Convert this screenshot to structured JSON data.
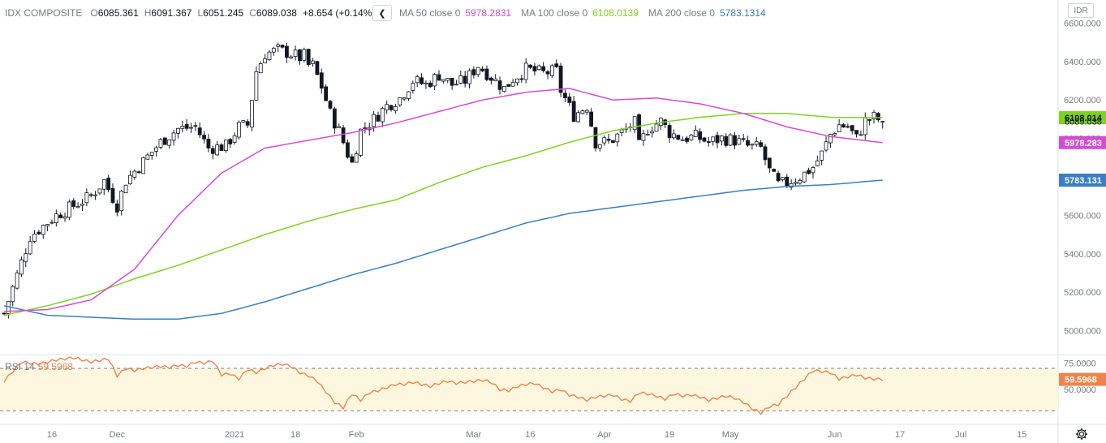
{
  "legend": {
    "symbol": "IDX COMPOSITE",
    "o_label": "O",
    "o_value": "6085.361",
    "h_label": "H",
    "h_value": "6091.367",
    "l_label": "L",
    "l_value": "6051.245",
    "c_label": "C",
    "c_value": "6089.038",
    "change": "+8.654 (+0.14%)"
  },
  "ma_legend": {
    "collapse_icon": "chevron-left-icon",
    "items": [
      {
        "name": "MA 50 close 0",
        "value": "5978.2831",
        "color": "#d64bd6"
      },
      {
        "name": "MA 100 close 0",
        "value": "6108.0139",
        "color": "#7ed321"
      },
      {
        "name": "MA 200 close 0",
        "value": "5783.1314",
        "color": "#3a7fc1"
      }
    ]
  },
  "currency": "IDR",
  "rsi_legend": {
    "name": "RSI 14",
    "value": "59.5968"
  },
  "settings_icon": "gear-icon",
  "colors": {
    "candle": "#131722",
    "ma50": "#d64bd6",
    "ma100": "#7ed321",
    "ma200": "#3a7fc1",
    "rsi": "#f0834a",
    "rsi_band": "#fdf7e0",
    "axis_text": "#787b86",
    "border": "#e0e3eb"
  },
  "chart_data": [
    {
      "type": "candlestick",
      "title": "IDX COMPOSITE",
      "ylim": [
        4880,
        6720
      ],
      "y_ticks": [
        "6600.000",
        "6400.000",
        "6200.000",
        "6000.000",
        "5800.000",
        "5600.000",
        "5400.000",
        "5200.000",
        "5000.000"
      ],
      "y_tick_values": [
        6600,
        6400,
        6200,
        6000,
        5800,
        5600,
        5400,
        5200,
        5000
      ],
      "x_ticks": [
        {
          "label": "16",
          "index": 11
        },
        {
          "label": "Dec",
          "index": 26
        },
        {
          "label": "2021",
          "index": 53
        },
        {
          "label": "18",
          "index": 67
        },
        {
          "label": "Feb",
          "index": 81
        },
        {
          "label": "Mar",
          "index": 108
        },
        {
          "label": "16",
          "index": 121
        },
        {
          "label": "Apr",
          "index": 138
        },
        {
          "label": "19",
          "index": 153
        },
        {
          "label": "May",
          "index": 167
        },
        {
          "label": "Jun",
          "index": 191
        },
        {
          "label": "17",
          "index": 206
        },
        {
          "label": "Jul",
          "index": 220
        },
        {
          "label": "15",
          "index": 234
        }
      ],
      "ohlc_anchors": [
        [
          0,
          5090
        ],
        [
          6,
          5490
        ],
        [
          12,
          5600
        ],
        [
          20,
          5700
        ],
        [
          23,
          5780
        ],
        [
          26,
          5650
        ],
        [
          28,
          5780
        ],
        [
          32,
          5880
        ],
        [
          36,
          5980
        ],
        [
          40,
          6050
        ],
        [
          44,
          6060
        ],
        [
          47,
          5950
        ],
        [
          51,
          5960
        ],
        [
          54,
          6060
        ],
        [
          56,
          6070
        ],
        [
          58,
          6350
        ],
        [
          60,
          6440
        ],
        [
          63,
          6460
        ],
        [
          66,
          6440
        ],
        [
          68,
          6420
        ],
        [
          69,
          6430
        ],
        [
          70,
          6380
        ],
        [
          71,
          6380
        ],
        [
          73,
          6270
        ],
        [
          75,
          6130
        ],
        [
          77,
          6040
        ],
        [
          79,
          5920
        ],
        [
          80,
          5870
        ],
        [
          82,
          6040
        ],
        [
          85,
          6100
        ],
        [
          88,
          6170
        ],
        [
          91,
          6210
        ],
        [
          94,
          6300
        ],
        [
          97,
          6280
        ],
        [
          100,
          6330
        ],
        [
          103,
          6280
        ],
        [
          106,
          6300
        ],
        [
          109,
          6380
        ],
        [
          112,
          6320
        ],
        [
          115,
          6260
        ],
        [
          117,
          6310
        ],
        [
          120,
          6360
        ],
        [
          124,
          6340
        ],
        [
          127,
          6350
        ],
        [
          128,
          6250
        ],
        [
          131,
          6120
        ],
        [
          134,
          6170
        ],
        [
          136,
          5980
        ],
        [
          139,
          5980
        ],
        [
          142,
          6030
        ],
        [
          145,
          6080
        ],
        [
          146,
          5960
        ],
        [
          148,
          6050
        ],
        [
          151,
          6090
        ],
        [
          153,
          6030
        ],
        [
          156,
          6000
        ],
        [
          159,
          6010
        ],
        [
          162,
          5980
        ],
        [
          165,
          6000
        ],
        [
          168,
          5990
        ],
        [
          171,
          5960
        ],
        [
          174,
          5950
        ],
        [
          176,
          5830
        ],
        [
          178,
          5760
        ],
        [
          180,
          5770
        ],
        [
          183,
          5800
        ],
        [
          186,
          5850
        ],
        [
          188,
          5920
        ],
        [
          190,
          6020
        ],
        [
          192,
          6070
        ],
        [
          194,
          6060
        ],
        [
          196,
          6000
        ],
        [
          198,
          6090
        ],
        [
          200,
          6110
        ],
        [
          202,
          6089
        ]
      ],
      "ma50": [
        [
          0,
          5100
        ],
        [
          10,
          5110
        ],
        [
          20,
          5160
        ],
        [
          30,
          5320
        ],
        [
          40,
          5600
        ],
        [
          50,
          5820
        ],
        [
          60,
          5950
        ],
        [
          70,
          5990
        ],
        [
          80,
          6030
        ],
        [
          90,
          6080
        ],
        [
          100,
          6140
        ],
        [
          110,
          6200
        ],
        [
          120,
          6240
        ],
        [
          130,
          6260
        ],
        [
          140,
          6200
        ],
        [
          150,
          6210
        ],
        [
          160,
          6180
        ],
        [
          170,
          6130
        ],
        [
          180,
          6060
        ],
        [
          190,
          6010
        ],
        [
          202,
          5978
        ]
      ],
      "ma100": [
        [
          0,
          5080
        ],
        [
          10,
          5130
        ],
        [
          20,
          5190
        ],
        [
          30,
          5270
        ],
        [
          40,
          5340
        ],
        [
          50,
          5420
        ],
        [
          60,
          5500
        ],
        [
          70,
          5570
        ],
        [
          80,
          5630
        ],
        [
          90,
          5680
        ],
        [
          100,
          5770
        ],
        [
          110,
          5850
        ],
        [
          120,
          5910
        ],
        [
          130,
          5980
        ],
        [
          140,
          6040
        ],
        [
          150,
          6080
        ],
        [
          160,
          6110
        ],
        [
          170,
          6130
        ],
        [
          180,
          6130
        ],
        [
          190,
          6110
        ],
        [
          202,
          6108
        ]
      ],
      "ma200": [
        [
          0,
          5130
        ],
        [
          10,
          5080
        ],
        [
          20,
          5070
        ],
        [
          30,
          5060
        ],
        [
          40,
          5060
        ],
        [
          50,
          5090
        ],
        [
          60,
          5150
        ],
        [
          70,
          5220
        ],
        [
          80,
          5290
        ],
        [
          90,
          5350
        ],
        [
          100,
          5420
        ],
        [
          110,
          5490
        ],
        [
          120,
          5560
        ],
        [
          130,
          5610
        ],
        [
          140,
          5640
        ],
        [
          150,
          5670
        ],
        [
          160,
          5700
        ],
        [
          170,
          5730
        ],
        [
          180,
          5750
        ],
        [
          190,
          5760
        ],
        [
          202,
          5783
        ]
      ],
      "last_price_labels": [
        {
          "text": "6108.014",
          "value": 6108.014,
          "color": "#7ed321"
        },
        {
          "text": "6089.038",
          "value": 6089.038,
          "color": ""
        },
        {
          "text": "5978.283",
          "value": 5978.283,
          "color": "#d64bd6"
        },
        {
          "text": "5783.131",
          "value": 5783.131,
          "color": "#3a7fc1"
        }
      ]
    },
    {
      "type": "line",
      "title": "RSI 14",
      "ylim": [
        18,
        83
      ],
      "y_ticks": [
        "75.0000",
        "50.0000"
      ],
      "y_tick_values": [
        75,
        50
      ],
      "band": [
        70,
        30
      ],
      "last_label": {
        "text": "59.5968",
        "value": 59.5968,
        "color": "#f0834a"
      },
      "rsi_anchors": [
        [
          0,
          58
        ],
        [
          4,
          76
        ],
        [
          8,
          74
        ],
        [
          12,
          78
        ],
        [
          16,
          80
        ],
        [
          20,
          76
        ],
        [
          24,
          79
        ],
        [
          26,
          63
        ],
        [
          28,
          70
        ],
        [
          30,
          68
        ],
        [
          32,
          70
        ],
        [
          34,
          71
        ],
        [
          36,
          72
        ],
        [
          38,
          71
        ],
        [
          40,
          73
        ],
        [
          42,
          72
        ],
        [
          44,
          76
        ],
        [
          46,
          75
        ],
        [
          48,
          77
        ],
        [
          50,
          64
        ],
        [
          52,
          65
        ],
        [
          54,
          60
        ],
        [
          56,
          69
        ],
        [
          58,
          66
        ],
        [
          60,
          70
        ],
        [
          62,
          73
        ],
        [
          64,
          74
        ],
        [
          66,
          72
        ],
        [
          68,
          66
        ],
        [
          70,
          63
        ],
        [
          72,
          58
        ],
        [
          74,
          48
        ],
        [
          76,
          38
        ],
        [
          78,
          33
        ],
        [
          80,
          46
        ],
        [
          82,
          40
        ],
        [
          84,
          47
        ],
        [
          86,
          49
        ],
        [
          88,
          52
        ],
        [
          90,
          55
        ],
        [
          92,
          55
        ],
        [
          94,
          57
        ],
        [
          96,
          55
        ],
        [
          98,
          53
        ],
        [
          100,
          56
        ],
        [
          102,
          58
        ],
        [
          104,
          56
        ],
        [
          106,
          57
        ],
        [
          108,
          58
        ],
        [
          110,
          59
        ],
        [
          112,
          57
        ],
        [
          114,
          50
        ],
        [
          116,
          49
        ],
        [
          118,
          53
        ],
        [
          120,
          55
        ],
        [
          122,
          56
        ],
        [
          124,
          52
        ],
        [
          126,
          48
        ],
        [
          128,
          50
        ],
        [
          130,
          45
        ],
        [
          132,
          43
        ],
        [
          134,
          40
        ],
        [
          136,
          43
        ],
        [
          138,
          44
        ],
        [
          140,
          45
        ],
        [
          142,
          41
        ],
        [
          144,
          39
        ],
        [
          146,
          47
        ],
        [
          148,
          46
        ],
        [
          150,
          44
        ],
        [
          152,
          41
        ],
        [
          154,
          46
        ],
        [
          156,
          44
        ],
        [
          158,
          45
        ],
        [
          160,
          43
        ],
        [
          162,
          40
        ],
        [
          164,
          42
        ],
        [
          166,
          44
        ],
        [
          168,
          42
        ],
        [
          170,
          38
        ],
        [
          172,
          32
        ],
        [
          174,
          28
        ],
        [
          176,
          34
        ],
        [
          178,
          36
        ],
        [
          180,
          44
        ],
        [
          182,
          52
        ],
        [
          184,
          60
        ],
        [
          186,
          68
        ],
        [
          188,
          67
        ],
        [
          190,
          66
        ],
        [
          192,
          60
        ],
        [
          194,
          62
        ],
        [
          196,
          64
        ],
        [
          198,
          61
        ],
        [
          200,
          60
        ],
        [
          202,
          59.6
        ]
      ]
    }
  ]
}
